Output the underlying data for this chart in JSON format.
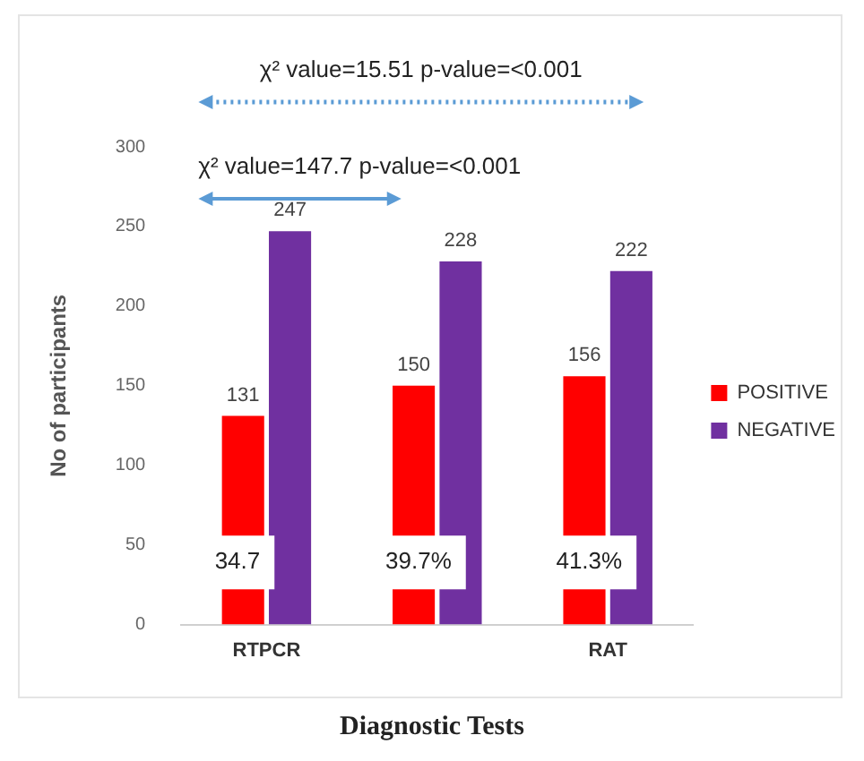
{
  "chart_data": {
    "type": "bar",
    "xlabel": "Diagnostic Tests",
    "ylabel": "No of participants",
    "categories": [
      "RTPCR",
      null,
      "RAT"
    ],
    "series": [
      {
        "name": "POSITIVE",
        "color": "#ff0000",
        "values": [
          131,
          150,
          156
        ]
      },
      {
        "name": "NEGATIVE",
        "color": "#7030a0",
        "values": [
          247,
          228,
          222
        ]
      }
    ],
    "ylim": [
      0,
      300
    ],
    "yticks": [
      0,
      50,
      100,
      150,
      200,
      250,
      300
    ],
    "grid": false,
    "legend": "right",
    "data_labels": true,
    "annotations": [
      "χ² value=15.51  p-value=<0.001",
      "χ² value=147.7  p-value=<0.001",
      "34.7",
      "39.7%",
      "41.3%"
    ]
  }
}
